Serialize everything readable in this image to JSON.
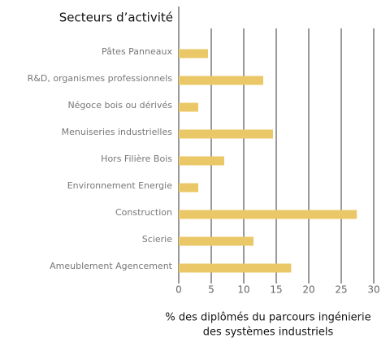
{
  "chart_data": {
    "type": "bar",
    "orientation": "horizontal",
    "title": "Secteurs d’activité",
    "xlabel": [
      "% des diplômés du parcours ingénierie",
      "des systèmes industriels"
    ],
    "categories": [
      "Pâtes Panneaux",
      "R&D, organismes professionnels",
      "Négoce bois ou dérivés",
      "Menuiseries industrielles",
      "Hors Filière Bois",
      "Environnement Energie",
      "Construction",
      "Scierie",
      "Ameublement Agencement"
    ],
    "values": [
      4.5,
      13,
      3,
      14.5,
      7,
      3,
      27.4,
      11.5,
      17.3
    ],
    "color": "#ebc867",
    "xlim": [
      0,
      32
    ],
    "xticks": [
      0,
      5,
      10,
      15,
      20,
      25,
      30
    ],
    "grid": true
  }
}
